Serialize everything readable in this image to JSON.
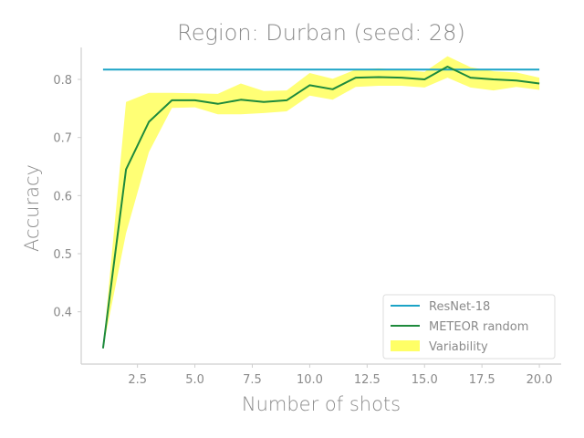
{
  "chart_data": {
    "type": "line",
    "title": "Region: Durban (seed: 28)",
    "xlabel": "Number of shots",
    "ylabel": "Accuracy",
    "xlim": [
      0.05,
      20.95
    ],
    "ylim": [
      0.31,
      0.855
    ],
    "xticks": [
      2.5,
      5.0,
      7.5,
      10.0,
      12.5,
      15.0,
      17.5,
      20.0
    ],
    "xtick_labels": [
      "2.5",
      "5.0",
      "7.5",
      "10.0",
      "12.5",
      "15.0",
      "17.5",
      "20.0"
    ],
    "yticks": [
      0.4,
      0.5,
      0.6,
      0.7,
      0.8
    ],
    "ytick_labels": [
      "0.4",
      "0.5",
      "0.6",
      "0.7",
      "0.8"
    ],
    "grid": false,
    "legend_position": "bottom-right",
    "series": [
      {
        "name": "ResNet-18",
        "kind": "hline",
        "color": "#1ba3c6",
        "x": [
          1,
          20
        ],
        "y": [
          0.817,
          0.817
        ]
      },
      {
        "name": "METEOR random",
        "kind": "line",
        "color": "#1e8a3c",
        "x": [
          1,
          2,
          3,
          4,
          5,
          6,
          7,
          8,
          9,
          10,
          11,
          12,
          13,
          14,
          15,
          16,
          17,
          18,
          19,
          20
        ],
        "y": [
          0.337,
          0.645,
          0.727,
          0.764,
          0.764,
          0.758,
          0.765,
          0.761,
          0.764,
          0.79,
          0.783,
          0.803,
          0.804,
          0.803,
          0.8,
          0.822,
          0.803,
          0.8,
          0.798,
          0.793
        ]
      },
      {
        "name": "Variability",
        "kind": "band",
        "color": "#ffff66",
        "x": [
          1,
          2,
          3,
          4,
          5,
          6,
          7,
          8,
          9,
          10,
          11,
          12,
          13,
          14,
          15,
          16,
          17,
          18,
          19,
          20
        ],
        "lower": [
          0.337,
          0.535,
          0.675,
          0.751,
          0.752,
          0.74,
          0.74,
          0.742,
          0.745,
          0.772,
          0.765,
          0.787,
          0.789,
          0.789,
          0.786,
          0.803,
          0.786,
          0.781,
          0.787,
          0.782
        ],
        "upper": [
          0.337,
          0.761,
          0.777,
          0.777,
          0.776,
          0.775,
          0.793,
          0.78,
          0.781,
          0.811,
          0.801,
          0.817,
          0.819,
          0.816,
          0.813,
          0.84,
          0.821,
          0.814,
          0.812,
          0.803
        ]
      }
    ],
    "legend": [
      {
        "label": "ResNet-18",
        "kind": "line",
        "color": "#1ba3c6"
      },
      {
        "label": "METEOR random",
        "kind": "line",
        "color": "#1e8a3c"
      },
      {
        "label": "Variability",
        "kind": "patch",
        "color": "#ffff66"
      }
    ]
  }
}
